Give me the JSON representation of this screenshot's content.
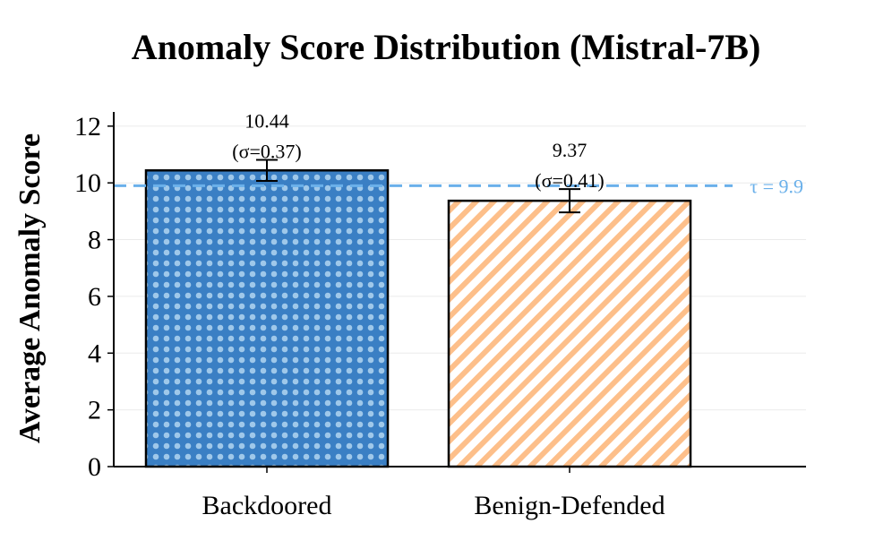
{
  "chart_data": {
    "type": "bar",
    "title": "Anomaly Score Distribution (Mistral-7B)",
    "xlabel": "",
    "ylabel": "Average Anomaly Score",
    "ylim": [
      0,
      12.5
    ],
    "yticks": [
      0,
      2,
      4,
      6,
      8,
      10,
      12
    ],
    "grid": true,
    "categories": [
      "Backdoored",
      "Benign-Defended"
    ],
    "values": [
      10.44,
      9.37
    ],
    "errors": [
      0.37,
      0.41
    ],
    "value_labels": [
      "10.44",
      "9.37"
    ],
    "std_labels": [
      "(σ=0.37)",
      "(σ=0.41)"
    ],
    "bar_fill_colors": [
      "#3a7fc4",
      "#ffffff"
    ],
    "bar_pattern_colors": [
      "#9fc8ea",
      "#fdbf8a"
    ],
    "bar_patterns": [
      "dots",
      "diagonal-stripes"
    ],
    "threshold": {
      "value": 9.9,
      "label": "τ = 9.9",
      "color": "#6ab0ea",
      "style": "dashed"
    }
  }
}
